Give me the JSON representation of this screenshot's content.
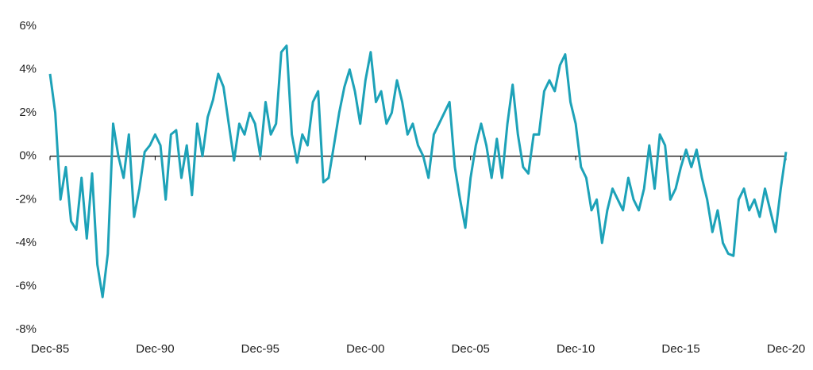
{
  "chart_data": {
    "type": "line",
    "categories": [
      "Dec-85",
      null,
      null,
      null,
      null,
      null,
      null,
      null,
      null,
      null,
      null,
      null,
      null,
      null,
      null,
      null,
      null,
      null,
      null,
      null,
      "Dec-90",
      null,
      null,
      null,
      null,
      null,
      null,
      null,
      null,
      null,
      null,
      null,
      null,
      null,
      null,
      null,
      null,
      null,
      null,
      null,
      "Dec-95",
      null,
      null,
      null,
      null,
      null,
      null,
      null,
      null,
      null,
      null,
      null,
      null,
      null,
      null,
      null,
      null,
      null,
      null,
      null,
      "Dec-00",
      null,
      null,
      null,
      null,
      null,
      null,
      null,
      null,
      null,
      null,
      null,
      null,
      null,
      null,
      null,
      null,
      null,
      null,
      null,
      "Dec-05",
      null,
      null,
      null,
      null,
      null,
      null,
      null,
      null,
      null,
      null,
      null,
      null,
      null,
      null,
      null,
      null,
      null,
      null,
      null,
      "Dec-10",
      null,
      null,
      null,
      null,
      null,
      null,
      null,
      null,
      null,
      null,
      null,
      null,
      null,
      null,
      null,
      null,
      null,
      null,
      null,
      "Dec-15",
      null,
      null,
      null,
      null,
      null,
      null,
      null,
      null,
      null,
      null,
      null,
      null,
      null,
      null,
      null,
      null,
      null,
      null,
      null,
      "Dec-20"
    ],
    "series": [
      {
        "color": "#1da2b8",
        "values": [
          3.8,
          2.0,
          -2.0,
          -0.5,
          -3.0,
          -3.4,
          -1.0,
          -3.8,
          -0.8,
          -5.0,
          -6.5,
          -4.5,
          1.5,
          0.0,
          -1.0,
          1.0,
          -2.8,
          -1.5,
          0.2,
          0.5,
          1.0,
          0.5,
          -2.0,
          1.0,
          1.2,
          -1.0,
          0.5,
          -1.8,
          1.5,
          0.0,
          1.8,
          2.6,
          3.8,
          3.2,
          1.5,
          -0.2,
          1.5,
          1.0,
          2.0,
          1.5,
          0.0,
          2.5,
          1.0,
          1.5,
          4.8,
          5.1,
          1.0,
          -0.3,
          1.0,
          0.5,
          2.5,
          3.0,
          -1.2,
          -1.0,
          0.5,
          2.0,
          3.2,
          4.0,
          3.0,
          1.5,
          3.5,
          4.8,
          2.5,
          3.0,
          1.5,
          2.0,
          3.5,
          2.5,
          1.0,
          1.5,
          0.5,
          0.0,
          -1.0,
          1.0,
          1.5,
          2.0,
          2.5,
          -0.5,
          -2.0,
          -3.3,
          -1.0,
          0.5,
          1.5,
          0.5,
          -1.0,
          0.8,
          -1.0,
          1.5,
          3.3,
          1.0,
          -0.5,
          -0.8,
          1.0,
          1.0,
          3.0,
          3.5,
          3.0,
          4.2,
          4.7,
          2.5,
          1.5,
          -0.5,
          -1.0,
          -2.5,
          -2.0,
          -4.0,
          -2.5,
          -1.5,
          -2.0,
          -2.5,
          -1.0,
          -2.0,
          -2.5,
          -1.5,
          0.5,
          -1.5,
          1.0,
          0.5,
          -2.0,
          -1.5,
          -0.5,
          0.3,
          -0.5,
          0.3,
          -1.0,
          -2.0,
          -3.5,
          -2.5,
          -4.0,
          -4.5,
          -4.6,
          -2.0,
          -1.5,
          -2.5,
          -2.0,
          -2.8,
          -1.5,
          -2.5,
          -3.5,
          -1.5,
          0.2
        ]
      }
    ],
    "ylim": [
      -8,
      6
    ],
    "yticks": [
      {
        "value": 6,
        "label": "6%"
      },
      {
        "value": 4,
        "label": "4%"
      },
      {
        "value": 2,
        "label": "2%"
      },
      {
        "value": 0,
        "label": "0%"
      },
      {
        "value": -2,
        "label": "-2%"
      },
      {
        "value": -4,
        "label": "-4%"
      },
      {
        "value": -6,
        "label": "-6%"
      },
      {
        "value": -8,
        "label": "-8%"
      }
    ]
  }
}
